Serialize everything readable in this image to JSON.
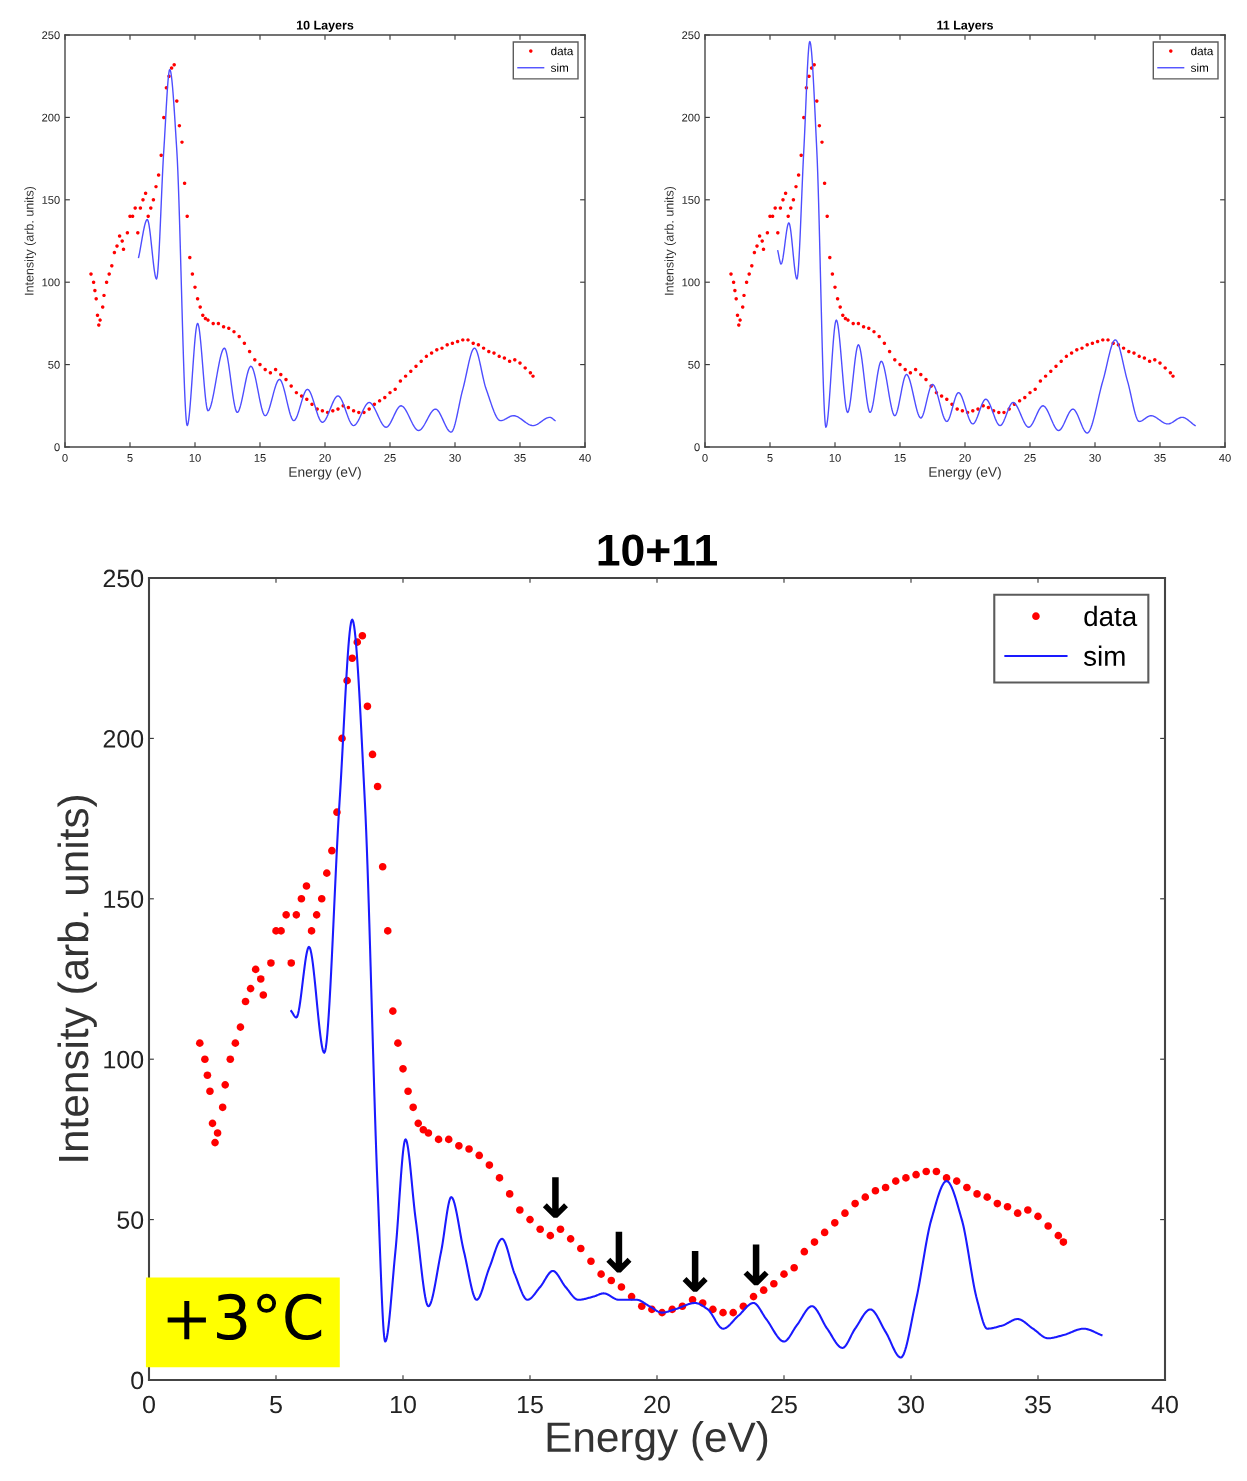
{
  "chart_data": [
    {
      "type": "line",
      "title": "10 Layers",
      "xlabel": "Energy (eV)",
      "ylabel": "Intensity (arb. units)",
      "xlim": [
        0,
        40
      ],
      "ylim": [
        0,
        250
      ],
      "xticks": [
        0,
        5,
        10,
        15,
        20,
        25,
        30,
        35,
        40
      ],
      "yticks": [
        0,
        50,
        100,
        150,
        200,
        250
      ],
      "legend": "top right",
      "series": [
        {
          "type": "scatter",
          "name": "data",
          "color": "#ff0000",
          "marker": "circle",
          "x": [
            2.0,
            2.2,
            2.3,
            2.4,
            2.5,
            2.6,
            2.7,
            2.9,
            3.0,
            3.2,
            3.4,
            3.6,
            3.8,
            4.0,
            4.2,
            4.4,
            4.5,
            4.8,
            5.0,
            5.2,
            5.4,
            5.6,
            5.8,
            6.0,
            6.2,
            6.4,
            6.6,
            6.8,
            7.0,
            7.2,
            7.4,
            7.6,
            7.8,
            8.0,
            8.2,
            8.4,
            8.6,
            8.8,
            9.0,
            9.2,
            9.4,
            9.6,
            9.8,
            10.0,
            10.2,
            10.4,
            10.6,
            10.8,
            11.0,
            11.4,
            11.8,
            12.2,
            12.6,
            13.0,
            13.4,
            13.8,
            14.2,
            14.6,
            15.0,
            15.4,
            15.8,
            16.2,
            16.6,
            17.0,
            17.4,
            17.8,
            18.2,
            18.6,
            19.0,
            19.4,
            19.8,
            20.2,
            20.6,
            21.0,
            21.4,
            21.8,
            22.2,
            22.6,
            23.0,
            23.4,
            23.8,
            24.2,
            24.6,
            25.0,
            25.4,
            25.8,
            26.2,
            26.6,
            27.0,
            27.4,
            27.8,
            28.2,
            28.6,
            29.0,
            29.4,
            29.8,
            30.2,
            30.6,
            31.0,
            31.4,
            31.8,
            32.2,
            32.6,
            33.0,
            33.4,
            33.8,
            34.2,
            34.6,
            35.0,
            35.4,
            35.8,
            36.0
          ],
          "values": [
            105,
            100,
            95,
            90,
            80,
            74,
            77,
            85,
            92,
            100,
            105,
            110,
            118,
            122,
            128,
            125,
            120,
            130,
            140,
            140,
            145,
            130,
            145,
            150,
            154,
            140,
            145,
            150,
            158,
            165,
            177,
            200,
            218,
            225,
            230,
            232,
            210,
            195,
            185,
            160,
            140,
            115,
            105,
            97,
            90,
            85,
            80,
            78,
            77,
            75,
            75,
            73,
            72,
            70,
            67,
            63,
            58,
            53,
            50,
            47,
            45,
            47,
            44,
            41,
            37,
            33,
            31,
            29,
            26,
            23,
            22,
            21,
            22,
            23,
            25,
            24,
            22,
            21,
            21,
            23,
            26,
            28,
            30,
            33,
            35,
            40,
            43,
            46,
            49,
            52,
            55,
            57,
            59,
            60,
            62,
            63,
            64,
            65,
            65,
            63,
            62,
            60,
            58,
            57,
            55,
            54,
            52,
            53,
            51,
            48,
            45,
            43
          ]
        },
        {
          "name": "sim",
          "color": "#4d4dff",
          "line_style": "solid",
          "x": [
            5.66,
            6.33,
            7.04,
            7.6,
            8.06,
            8.6,
            9.4,
            10.2,
            11.0,
            12.26,
            13.25,
            14.3,
            15.4,
            16.5,
            17.6,
            18.65,
            19.8,
            21.0,
            22.2,
            23.4,
            24.7,
            25.85,
            27.2,
            28.5,
            29.7,
            30.6,
            31.5,
            32.4,
            33.5,
            34.5,
            36.0,
            37.3,
            37.7
          ],
          "values": [
            115,
            138,
            102,
            180,
            229,
            180,
            13,
            75,
            22,
            60,
            21,
            49,
            19,
            41,
            16,
            35,
            15,
            31,
            13,
            27,
            12,
            25,
            10,
            23,
            9,
            35,
            60,
            35,
            16,
            19,
            13,
            18,
            16
          ]
        }
      ]
    },
    {
      "type": "line",
      "title": "11 Layers",
      "xlabel": "Energy (eV)",
      "ylabel": "Intensity (arb. units)",
      "xlim": [
        0,
        40
      ],
      "ylim": [
        0,
        250
      ],
      "xticks": [
        0,
        5,
        10,
        15,
        20,
        25,
        30,
        35,
        40
      ],
      "yticks": [
        0,
        50,
        100,
        150,
        200,
        250
      ],
      "legend": "top right",
      "series": [
        {
          "type": "scatter",
          "name": "data",
          "color": "#ff0000",
          "marker": "circle",
          "x": [
            2.0,
            2.2,
            2.3,
            2.4,
            2.5,
            2.6,
            2.7,
            2.9,
            3.0,
            3.2,
            3.4,
            3.6,
            3.8,
            4.0,
            4.2,
            4.4,
            4.5,
            4.8,
            5.0,
            5.2,
            5.4,
            5.6,
            5.8,
            6.0,
            6.2,
            6.4,
            6.6,
            6.8,
            7.0,
            7.2,
            7.4,
            7.6,
            7.8,
            8.0,
            8.2,
            8.4,
            8.6,
            8.8,
            9.0,
            9.2,
            9.4,
            9.6,
            9.8,
            10.0,
            10.2,
            10.4,
            10.6,
            10.8,
            11.0,
            11.4,
            11.8,
            12.2,
            12.6,
            13.0,
            13.4,
            13.8,
            14.2,
            14.6,
            15.0,
            15.4,
            15.8,
            16.2,
            16.6,
            17.0,
            17.4,
            17.8,
            18.2,
            18.6,
            19.0,
            19.4,
            19.8,
            20.2,
            20.6,
            21.0,
            21.4,
            21.8,
            22.2,
            22.6,
            23.0,
            23.4,
            23.8,
            24.2,
            24.6,
            25.0,
            25.4,
            25.8,
            26.2,
            26.6,
            27.0,
            27.4,
            27.8,
            28.2,
            28.6,
            29.0,
            29.4,
            29.8,
            30.2,
            30.6,
            31.0,
            31.4,
            31.8,
            32.2,
            32.6,
            33.0,
            33.4,
            33.8,
            34.2,
            34.6,
            35.0,
            35.4,
            35.8,
            36.0
          ],
          "values": [
            105,
            100,
            95,
            90,
            80,
            74,
            77,
            85,
            92,
            100,
            105,
            110,
            118,
            122,
            128,
            125,
            120,
            130,
            140,
            140,
            145,
            130,
            145,
            150,
            154,
            140,
            145,
            150,
            158,
            165,
            177,
            200,
            218,
            225,
            230,
            232,
            210,
            195,
            185,
            160,
            140,
            115,
            105,
            97,
            90,
            85,
            80,
            78,
            77,
            75,
            75,
            73,
            72,
            70,
            67,
            63,
            58,
            53,
            50,
            47,
            45,
            47,
            44,
            41,
            37,
            33,
            31,
            29,
            26,
            23,
            22,
            21,
            22,
            23,
            25,
            24,
            22,
            21,
            21,
            23,
            26,
            28,
            30,
            33,
            35,
            40,
            43,
            46,
            49,
            52,
            55,
            57,
            59,
            60,
            62,
            63,
            64,
            65,
            65,
            63,
            62,
            60,
            58,
            57,
            55,
            54,
            52,
            53,
            51,
            48,
            45,
            43
          ]
        },
        {
          "name": "sim",
          "color": "#4d4dff",
          "line_style": "solid",
          "x": [
            5.6,
            5.85,
            6.45,
            7.07,
            7.6,
            8.06,
            8.6,
            9.3,
            10.1,
            10.97,
            11.8,
            12.7,
            13.56,
            14.6,
            15.5,
            16.6,
            17.5,
            18.6,
            19.5,
            20.6,
            21.6,
            22.7,
            23.7,
            24.9,
            26.0,
            27.2,
            28.3,
            29.4,
            30.6,
            31.56,
            32.5,
            33.4,
            34.3,
            35.6,
            36.7,
            37.7
          ],
          "values": [
            119,
            111,
            136,
            102,
            180,
            246,
            180,
            12,
            77,
            21,
            62,
            21,
            52,
            19,
            44,
            17.6,
            38,
            15.5,
            33,
            14,
            29,
            13,
            27,
            12,
            25,
            10,
            23,
            8.5,
            40,
            65,
            40,
            15.5,
            19,
            14,
            18,
            13
          ]
        }
      ]
    },
    {
      "type": "line",
      "title": "10+11",
      "xlabel": "Energy (eV)",
      "ylabel": "Intensity (arb. units)",
      "xlim": [
        0,
        40
      ],
      "ylim": [
        0,
        250
      ],
      "xticks": [
        0,
        5,
        10,
        15,
        20,
        25,
        30,
        35,
        40
      ],
      "yticks": [
        0,
        50,
        100,
        150,
        200,
        250
      ],
      "legend": "top right",
      "annotations": [
        "+3°C",
        {
          "text": "↓",
          "x": 16.0,
          "y": 47
        },
        {
          "text": "↓",
          "x": 18.5,
          "y": 30
        },
        {
          "text": "↓",
          "x": 21.5,
          "y": 24
        },
        {
          "text": "↓",
          "x": 23.9,
          "y": 26
        }
      ],
      "series": [
        {
          "type": "scatter",
          "name": "data",
          "color": "#ff0000",
          "marker": "circle",
          "x": [
            2.0,
            2.2,
            2.3,
            2.4,
            2.5,
            2.6,
            2.7,
            2.9,
            3.0,
            3.2,
            3.4,
            3.6,
            3.8,
            4.0,
            4.2,
            4.4,
            4.5,
            4.8,
            5.0,
            5.2,
            5.4,
            5.6,
            5.8,
            6.0,
            6.2,
            6.4,
            6.6,
            6.8,
            7.0,
            7.2,
            7.4,
            7.6,
            7.8,
            8.0,
            8.2,
            8.4,
            8.6,
            8.8,
            9.0,
            9.2,
            9.4,
            9.6,
            9.8,
            10.0,
            10.2,
            10.4,
            10.6,
            10.8,
            11.0,
            11.4,
            11.8,
            12.2,
            12.6,
            13.0,
            13.4,
            13.8,
            14.2,
            14.6,
            15.0,
            15.4,
            15.8,
            16.2,
            16.6,
            17.0,
            17.4,
            17.8,
            18.2,
            18.6,
            19.0,
            19.4,
            19.8,
            20.2,
            20.6,
            21.0,
            21.4,
            21.8,
            22.2,
            22.6,
            23.0,
            23.4,
            23.8,
            24.2,
            24.6,
            25.0,
            25.4,
            25.8,
            26.2,
            26.6,
            27.0,
            27.4,
            27.8,
            28.2,
            28.6,
            29.0,
            29.4,
            29.8,
            30.2,
            30.6,
            31.0,
            31.4,
            31.8,
            32.2,
            32.6,
            33.0,
            33.4,
            33.8,
            34.2,
            34.6,
            35.0,
            35.4,
            35.8,
            36.0
          ],
          "values": [
            105,
            100,
            95,
            90,
            80,
            74,
            77,
            85,
            92,
            100,
            105,
            110,
            118,
            122,
            128,
            125,
            120,
            130,
            140,
            140,
            145,
            130,
            145,
            150,
            154,
            140,
            145,
            150,
            158,
            165,
            177,
            200,
            218,
            225,
            230,
            232,
            210,
            195,
            185,
            160,
            140,
            115,
            105,
            97,
            90,
            85,
            80,
            78,
            77,
            75,
            75,
            73,
            72,
            70,
            67,
            63,
            58,
            53,
            50,
            47,
            45,
            47,
            44,
            41,
            37,
            33,
            31,
            29,
            26,
            23,
            22,
            21,
            22,
            23,
            25,
            24,
            22,
            21,
            21,
            23,
            26,
            28,
            30,
            33,
            35,
            40,
            43,
            46,
            49,
            52,
            55,
            57,
            59,
            60,
            62,
            63,
            64,
            65,
            65,
            63,
            62,
            60,
            58,
            57,
            55,
            54,
            52,
            53,
            51,
            48,
            45,
            43
          ]
        },
        {
          "name": "sim",
          "color": "#1a1aff",
          "line_style": "solid",
          "x": [
            5.6,
            5.8,
            6.3,
            6.9,
            7.5,
            8.0,
            8.5,
            9.0,
            9.3,
            9.7,
            10.1,
            10.5,
            11.0,
            11.5,
            11.9,
            12.4,
            12.9,
            13.4,
            13.9,
            14.4,
            14.9,
            15.4,
            15.9,
            16.4,
            16.9,
            17.5,
            17.9,
            18.5,
            19.2,
            19.7,
            20.2,
            20.7,
            21.5,
            22.0,
            22.6,
            23.2,
            23.8,
            24.3,
            25.0,
            25.5,
            26.1,
            26.7,
            27.3,
            27.8,
            28.4,
            29.0,
            29.6,
            30.2,
            30.8,
            31.4,
            32.0,
            32.6,
            33.0,
            33.6,
            34.2,
            34.8,
            35.4,
            36.0,
            36.8,
            37.5
          ],
          "values": [
            115,
            113,
            135,
            102,
            180,
            237,
            180,
            60,
            12,
            40,
            75,
            50,
            23,
            40,
            57,
            40,
            25,
            35,
            44,
            33,
            25,
            29,
            34,
            29,
            25,
            26,
            27,
            25,
            25,
            23,
            21,
            22,
            24,
            22,
            16,
            20,
            24,
            19,
            12,
            17,
            23,
            16,
            10,
            16,
            22,
            15,
            7,
            25,
            50,
            62,
            50,
            25,
            16,
            17,
            19,
            16,
            13,
            14,
            16,
            14
          ]
        }
      ]
    }
  ]
}
